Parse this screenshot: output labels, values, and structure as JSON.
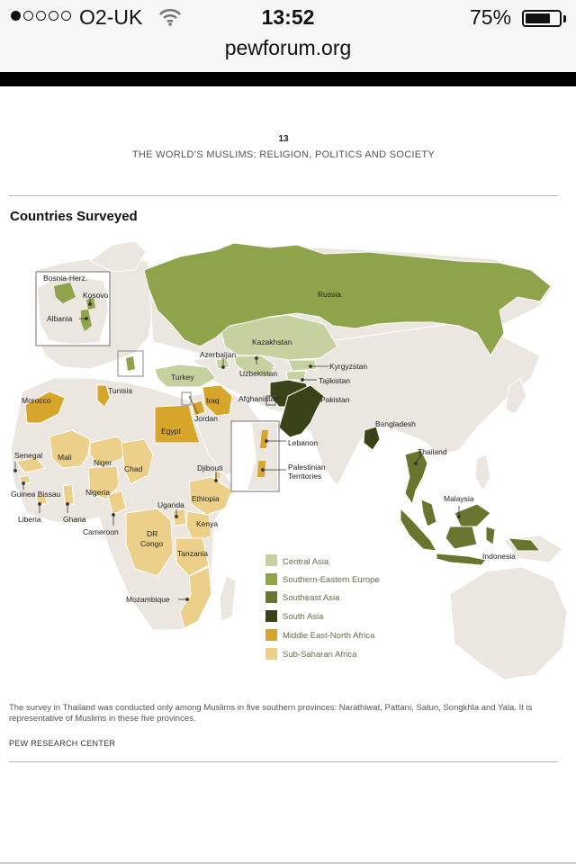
{
  "status_bar": {
    "carrier": "O2-UK",
    "time": "13:52",
    "battery_percent": "75%",
    "battery_level": 0.75,
    "signal_bars_filled": 1,
    "signal_bars_total": 5
  },
  "browser": {
    "url": "pewforum.org"
  },
  "report": {
    "page_number": "13",
    "title": "THE WORLD’S MUSLIMS: RELIGION, POLITICS AND SOCIETY"
  },
  "section_title": "Countries Surveyed",
  "colors": {
    "central_asia": "#c5d19f",
    "southern_eastern_europe": "#8fa34a",
    "southeast_asia": "#67752f",
    "south_asia": "#3a4318",
    "middle_east_north_africa": "#d7a52a",
    "sub_saharan_africa": "#ecd08a",
    "other_land": "#ebe6e0",
    "ocean": "#ffffff"
  },
  "legend": [
    {
      "label": "Central Asia",
      "color": "#c5d19f"
    },
    {
      "label": "Southern-Eastern Europe",
      "color": "#8fa34a"
    },
    {
      "label": "Southeast Asia",
      "color": "#67752f"
    },
    {
      "label": "South Asia",
      "color": "#3a4318"
    },
    {
      "label": "Middle East-North Africa",
      "color": "#d7a52a"
    },
    {
      "label": "Sub-Saharan Africa",
      "color": "#ecd08a"
    }
  ],
  "country_labels": {
    "russia": "Russia",
    "kazakhstan": "Kazakhstan",
    "azerbaijan": "Azerbaijan",
    "uzbekistan": "Uzbekistan",
    "kyrgyzstan": "Kyrgyzstan",
    "tajikistan": "Tajikistan",
    "turkey": "Turkey",
    "afghanistan": "Afghanistan",
    "pakistan": "Pakistan",
    "bangladesh": "Bangladesh",
    "thailand": "Thailand",
    "malaysia": "Malaysia",
    "indonesia": "Indonesia",
    "bosnia": "Bosnia-Herz.",
    "kosovo": "Kosovo",
    "albania": "Albania",
    "morocco": "Morocco",
    "tunisia": "Tunisia",
    "iraq": "Iraq",
    "jordan": "Jordan",
    "egypt": "Egypt",
    "lebanon": "Lebanon",
    "palestinian": "Palestinian",
    "territories": "Territories",
    "senegal": "Senegal",
    "mali": "Mali",
    "niger": "Niger",
    "chad": "Chad",
    "nigeria": "Nigeria",
    "guinea_bissau": "Guinea Bissau",
    "liberia": "Liberia",
    "ghana": "Ghana",
    "cameroon": "Cameroon",
    "djibouti": "Djibouti",
    "ethiopia": "Ethiopia",
    "uganda": "Uganda",
    "kenya": "Kenya",
    "dr": "DR",
    "congo": "Congo",
    "tanzania": "Tanzania",
    "mozambique": "Mozambique"
  },
  "note": "The survey in Thailand was conducted only among Muslims in five southern provinces: Narathiwat, Pattani, Satun, Songkhla and Yala. It is representative of Muslims in these five provinces.",
  "source": "PEW RESEARCH CENTER"
}
